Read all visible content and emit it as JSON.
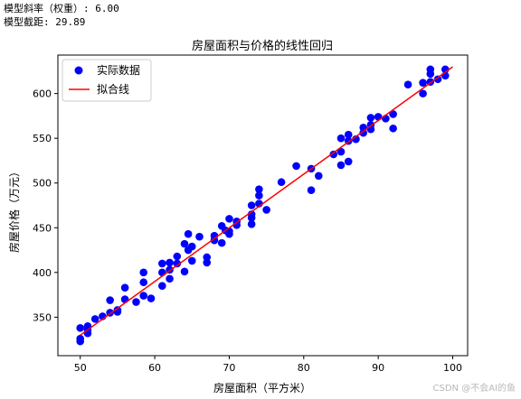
{
  "console": {
    "line1": "模型斜率（权重）: 6.00",
    "line2": "模型截距: 29.89"
  },
  "watermark": "CSDN @不会AI的鱼",
  "chart_data": {
    "type": "scatter",
    "title": "房屋面积与价格的线性回归",
    "xlabel": "房屋面积（平方米）",
    "ylabel": "房屋价格（万元）",
    "xlim": [
      47,
      102
    ],
    "ylim": [
      307,
      643
    ],
    "xticks": [
      50,
      60,
      70,
      80,
      90,
      100
    ],
    "yticks": [
      350,
      400,
      450,
      500,
      550,
      600
    ],
    "legend_position": "top-left",
    "grid": false,
    "series": [
      {
        "name": "实际数据",
        "kind": "points",
        "color": "#0000ff",
        "points": [
          [
            50,
            338
          ],
          [
            50,
            326
          ],
          [
            50,
            323
          ],
          [
            51,
            340
          ],
          [
            51,
            332
          ],
          [
            51,
            336
          ],
          [
            52,
            348
          ],
          [
            53,
            351
          ],
          [
            54,
            369
          ],
          [
            54,
            355
          ],
          [
            55,
            356
          ],
          [
            55,
            358
          ],
          [
            56,
            370
          ],
          [
            56,
            383
          ],
          [
            57.5,
            367
          ],
          [
            58.5,
            400
          ],
          [
            58.5,
            389
          ],
          [
            58.5,
            374
          ],
          [
            59.5,
            371
          ],
          [
            61,
            410
          ],
          [
            61,
            400
          ],
          [
            61,
            385
          ],
          [
            62,
            411
          ],
          [
            62,
            403
          ],
          [
            62,
            393
          ],
          [
            63,
            418
          ],
          [
            63,
            410
          ],
          [
            64,
            432
          ],
          [
            64,
            401
          ],
          [
            64.5,
            443
          ],
          [
            64.5,
            425
          ],
          [
            65,
            429
          ],
          [
            65,
            413
          ],
          [
            66,
            440
          ],
          [
            67,
            417
          ],
          [
            67,
            411
          ],
          [
            68,
            441
          ],
          [
            68,
            436
          ],
          [
            69,
            452
          ],
          [
            69,
            433
          ],
          [
            69.5,
            447
          ],
          [
            70,
            460
          ],
          [
            70,
            446
          ],
          [
            70,
            443
          ],
          [
            71,
            457
          ],
          [
            71,
            453
          ],
          [
            73,
            475
          ],
          [
            73,
            465
          ],
          [
            73,
            461
          ],
          [
            73,
            454
          ],
          [
            74,
            493
          ],
          [
            74,
            486
          ],
          [
            74,
            477
          ],
          [
            75,
            470
          ],
          [
            77,
            501
          ],
          [
            79,
            519
          ],
          [
            81,
            516
          ],
          [
            81,
            492
          ],
          [
            82,
            508
          ],
          [
            84,
            532
          ],
          [
            85,
            550
          ],
          [
            85,
            535
          ],
          [
            85,
            520
          ],
          [
            86,
            554
          ],
          [
            86,
            547
          ],
          [
            86,
            524
          ],
          [
            87,
            549
          ],
          [
            88,
            562
          ],
          [
            88,
            556
          ],
          [
            89,
            573
          ],
          [
            89,
            565
          ],
          [
            89,
            560
          ],
          [
            90,
            574
          ],
          [
            91,
            572
          ],
          [
            92,
            577
          ],
          [
            92,
            561
          ],
          [
            94,
            610
          ],
          [
            96,
            612
          ],
          [
            96,
            600
          ],
          [
            97,
            627
          ],
          [
            97,
            622
          ],
          [
            97,
            613
          ],
          [
            98,
            616
          ],
          [
            99,
            627
          ],
          [
            99,
            620
          ]
        ]
      },
      {
        "name": "拟合线",
        "kind": "line",
        "color": "#ff0000",
        "points": [
          [
            50,
            329.89
          ],
          [
            100,
            629.89
          ]
        ]
      }
    ]
  }
}
